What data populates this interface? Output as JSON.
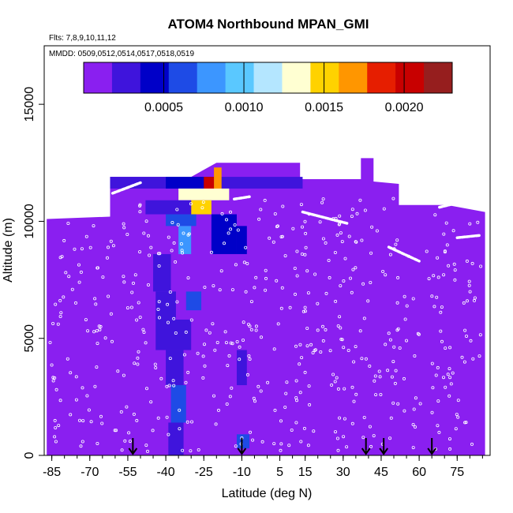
{
  "chart_data": {
    "type": "heatmap",
    "title": "ATOM4 Northbound MPAN_GMI",
    "flights_label": "Flts: 7,8,9,10,11,12",
    "dates_label": "MMDD: 0509,0512,0514,0517,0518,0519",
    "xlabel": "Latitude (deg N)",
    "ylabel": "Altitude (m)",
    "xlim": [
      -88,
      88
    ],
    "ylim": [
      0,
      17500
    ],
    "x_tick_labels": [
      "-85",
      "-70",
      "-55",
      "-40",
      "-25",
      "-10",
      "5",
      "15",
      "30",
      "45",
      "60",
      "75"
    ],
    "x_tick_values": [
      -85,
      -70,
      -55,
      -40,
      -25,
      -10,
      5,
      15,
      30,
      45,
      60,
      75
    ],
    "y_tick_labels": [
      "0",
      "5000",
      "10000",
      "15000"
    ],
    "y_tick_values": [
      0,
      5000,
      10000,
      15000
    ],
    "colorbar": {
      "range": [
        0,
        0.0023
      ],
      "tick_labels": [
        "0.0005",
        "0.0010",
        "0.0015",
        "0.0020"
      ],
      "tick_values": [
        0.0005,
        0.001,
        0.0015,
        0.002
      ],
      "colors": [
        "#8a1ff0",
        "#3f14dc",
        "#0000c8",
        "#1e4be6",
        "#3c96ff",
        "#5ac8ff",
        "#b4e6ff",
        "#ffffd2",
        "#ffd200",
        "#ff9600",
        "#e61e00",
        "#c80000",
        "#961e1e"
      ]
    },
    "background_value": 3e-05,
    "domain_outline": [
      [
        -87,
        0
      ],
      [
        -87,
        10100
      ],
      [
        -62,
        10200
      ],
      [
        -62,
        11900
      ],
      [
        -30,
        11900
      ],
      [
        -20,
        12500
      ],
      [
        13,
        12500
      ],
      [
        13,
        11800
      ],
      [
        37,
        11800
      ],
      [
        37,
        12700
      ],
      [
        42,
        12700
      ],
      [
        42,
        11700
      ],
      [
        52,
        11600
      ],
      [
        52,
        10700
      ],
      [
        71,
        10700
      ],
      [
        86,
        10400
      ],
      [
        86,
        0
      ]
    ],
    "cells": [
      {
        "lat": [
          -62,
          14
        ],
        "alt": [
          11400,
          11900
        ],
        "value": 0.00018
      },
      {
        "lat": [
          -40,
          -20
        ],
        "alt": [
          11400,
          11900
        ],
        "value": 0.00052
      },
      {
        "lat": [
          -25,
          -21
        ],
        "alt": [
          11300,
          11900
        ],
        "value": 0.0021
      },
      {
        "lat": [
          -21,
          -18
        ],
        "alt": [
          11300,
          12300
        ],
        "value": 0.0016
      },
      {
        "lat": [
          -35,
          -15
        ],
        "alt": [
          10900,
          11400
        ],
        "value": 0.0013
      },
      {
        "lat": [
          -30,
          -22
        ],
        "alt": [
          10300,
          10900
        ],
        "value": 0.00145
      },
      {
        "lat": [
          -48,
          -30
        ],
        "alt": [
          10300,
          10900
        ],
        "value": 0.00035
      },
      {
        "lat": [
          -40,
          -28
        ],
        "alt": [
          9800,
          10300
        ],
        "value": 0.0006
      },
      {
        "lat": [
          -35,
          -30
        ],
        "alt": [
          8600,
          9800
        ],
        "value": 0.00075
      },
      {
        "lat": [
          -22,
          -12
        ],
        "alt": [
          8600,
          10300
        ],
        "value": 0.00042
      },
      {
        "lat": [
          -12,
          -8
        ],
        "alt": [
          8600,
          9800
        ],
        "value": 0.0004
      },
      {
        "lat": [
          -45,
          -38
        ],
        "alt": [
          7000,
          8600
        ],
        "value": 0.0003
      },
      {
        "lat": [
          -32,
          -26
        ],
        "alt": [
          6200,
          7000
        ],
        "value": 0.0006
      },
      {
        "lat": [
          -44,
          -36
        ],
        "alt": [
          5800,
          7000
        ],
        "value": 0.00028
      },
      {
        "lat": [
          -44,
          -30
        ],
        "alt": [
          4500,
          5800
        ],
        "value": 0.0002
      },
      {
        "lat": [
          -40,
          -33
        ],
        "alt": [
          3000,
          4500
        ],
        "value": 0.00024
      },
      {
        "lat": [
          -38,
          -32
        ],
        "alt": [
          1400,
          3000
        ],
        "value": 0.0007
      },
      {
        "lat": [
          -39,
          -33
        ],
        "alt": [
          0,
          1400
        ],
        "value": 0.00022
      },
      {
        "lat": [
          -12,
          -7
        ],
        "alt": [
          300,
          900
        ],
        "value": 0.00055
      },
      {
        "lat": [
          -12,
          -8
        ],
        "alt": [
          3000,
          4500
        ],
        "value": 0.00022
      }
    ],
    "flight_tracks": [
      {
        "lat": [
          -61,
          -50
        ],
        "alt": [
          11200,
          11650
        ]
      },
      {
        "lat": [
          -13,
          -7
        ],
        "alt": [
          10950,
          11050
        ]
      },
      {
        "lat": [
          14,
          32
        ],
        "alt": [
          10400,
          9900
        ]
      },
      {
        "lat": [
          48,
          60
        ],
        "alt": [
          8900,
          8300
        ]
      },
      {
        "lat": [
          68,
          83
        ],
        "alt": [
          10600,
          11000
        ]
      },
      {
        "lat": [
          75,
          84
        ],
        "alt": [
          9300,
          9400
        ]
      }
    ],
    "arrow_lats": [
      -53,
      -10,
      39,
      46,
      65
    ]
  }
}
